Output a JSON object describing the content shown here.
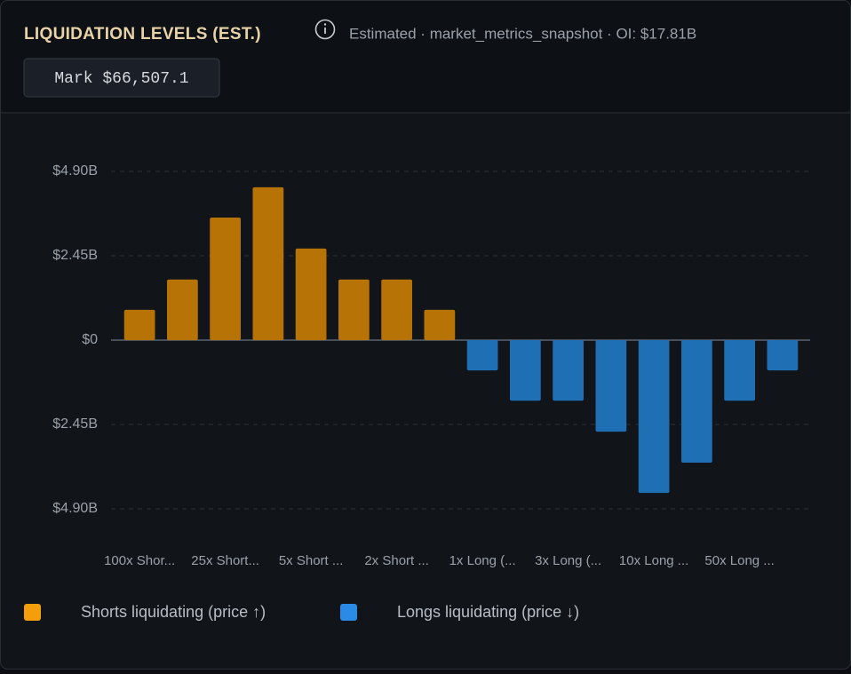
{
  "chart_data": {
    "type": "bar",
    "title": "LIQUIDATION LEVELS (EST.)",
    "subtitle": "Estimated · market_metrics_snapshot · OI: $17.81B",
    "annotations": [
      "Mark $66,507.1"
    ],
    "categories": [
      "100x Shor...",
      null,
      "25x Short...",
      null,
      "5x Short ...",
      null,
      "2x Short ...",
      null,
      "1x Long (...",
      null,
      "3x Long (...",
      null,
      "10x Long ...",
      null,
      "50x Long ...",
      null
    ],
    "series": [
      {
        "name": "Shorts liquidating (price ↑)",
        "color": "#b87306",
        "values": [
          0.88,
          1.76,
          3.56,
          4.44,
          2.66,
          1.76,
          1.76,
          0.88,
          null,
          null,
          null,
          null,
          null,
          null,
          null,
          null
        ]
      },
      {
        "name": "Longs liquidating (price ↓)",
        "color": "#1f6fb5",
        "values": [
          null,
          null,
          null,
          null,
          null,
          null,
          null,
          null,
          -0.88,
          -1.76,
          -1.76,
          -2.66,
          -4.44,
          -3.56,
          -1.76,
          -0.88
        ]
      }
    ],
    "legend_colors": [
      "#f59e0b",
      "#2b8ae6"
    ],
    "ylim": [
      -4.9,
      4.9
    ],
    "yticks": [
      {
        "value": 4.9,
        "label": "$4.90B"
      },
      {
        "value": 2.45,
        "label": "$2.45B"
      },
      {
        "value": 0,
        "label": "$0"
      },
      {
        "value": -2.45,
        "label": "$2.45B"
      },
      {
        "value": -4.9,
        "label": "$4.90B"
      }
    ],
    "grid": true
  }
}
